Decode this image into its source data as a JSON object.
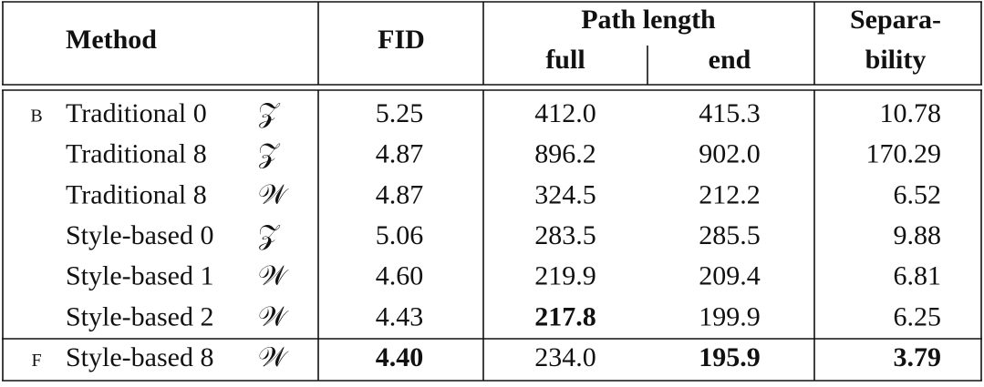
{
  "header": {
    "method": "Method",
    "fid": "FID",
    "path_length": "Path length",
    "full": "full",
    "end": "end",
    "separability_1": "Separa-",
    "separability_2": "bility"
  },
  "rows": [
    {
      "marker": "B",
      "method": "Traditional 0",
      "latent": "𝒵",
      "fid": "5.25",
      "full": "412.0",
      "end": "415.3",
      "separability": "10.78"
    },
    {
      "method": "Traditional 8",
      "latent": "𝒵",
      "fid": "4.87",
      "full": "896.2",
      "end": "902.0",
      "separability": "170.29"
    },
    {
      "method": "Traditional 8",
      "latent": "𝒲",
      "fid": "4.87",
      "full": "324.5",
      "end": "212.2",
      "separability": "6.52"
    },
    {
      "method": "Style-based 0",
      "latent": "𝒵",
      "fid": "5.06",
      "full": "283.5",
      "end": "285.5",
      "separability": "9.88"
    },
    {
      "method": "Style-based 1",
      "latent": "𝒲",
      "fid": "4.60",
      "full": "219.9",
      "end": "209.4",
      "separability": "6.81"
    },
    {
      "method": "Style-based 2",
      "latent": "𝒲",
      "fid": "4.43",
      "full": "217.8",
      "end": "199.9",
      "separability": "6.25"
    },
    {
      "marker": "F",
      "method": "Style-based 8",
      "latent": "𝒲",
      "fid": "4.40",
      "full": "234.0",
      "end": "195.9",
      "separability": "3.79"
    }
  ]
}
